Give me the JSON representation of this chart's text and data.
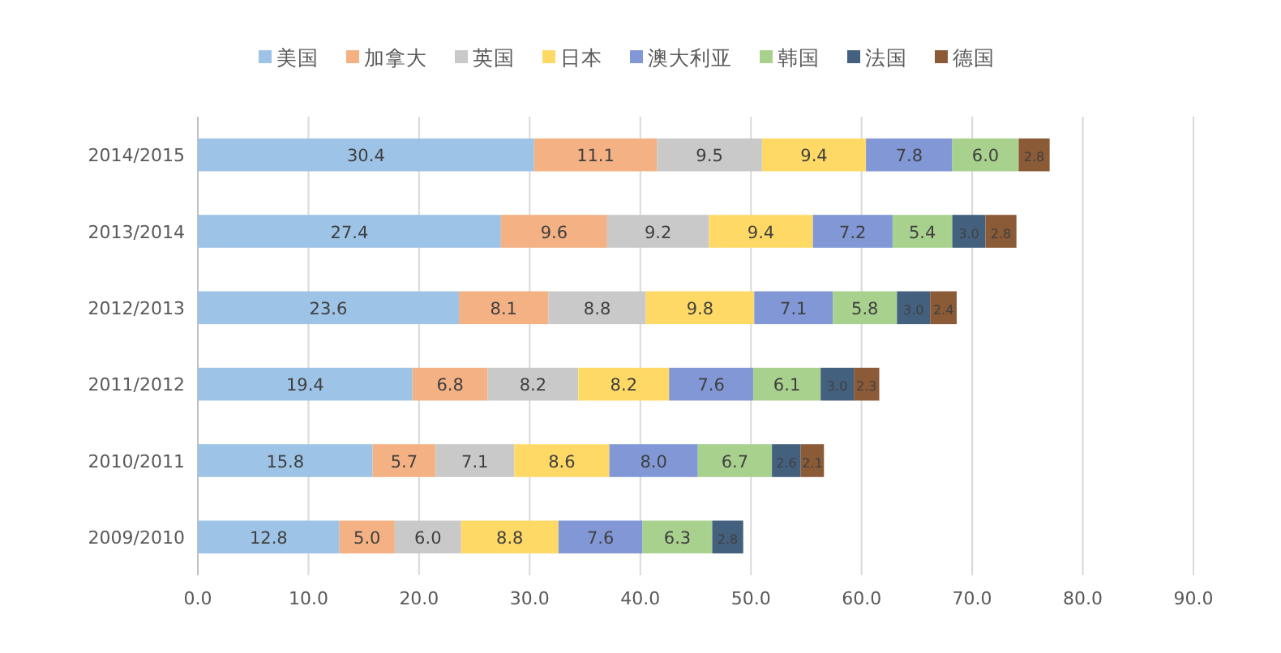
{
  "chart_data": {
    "type": "bar",
    "orientation": "horizontal",
    "stacked": true,
    "categories": [
      "2014/2015",
      "2013/2014",
      "2012/2013",
      "2011/2012",
      "2010/2011",
      "2009/2010"
    ],
    "series": [
      {
        "name": "美国",
        "color": "#9dc3e6",
        "values": [
          30.4,
          27.4,
          23.6,
          19.4,
          15.8,
          12.8
        ],
        "value_labels": [
          "30.4",
          "27.4",
          "23.6",
          "19.4",
          "15.8",
          "12.8"
        ]
      },
      {
        "name": "加拿大",
        "color": "#f4b183",
        "values": [
          11.1,
          9.6,
          8.1,
          6.8,
          5.7,
          5.0
        ],
        "value_labels": [
          "11.1",
          "9.6",
          "8.1",
          "6.8",
          "5.7",
          "5.0"
        ]
      },
      {
        "name": "英国",
        "color": "#c9c9c9",
        "values": [
          9.5,
          9.2,
          8.8,
          8.2,
          7.1,
          6.0
        ],
        "value_labels": [
          "9.5",
          "9.2",
          "8.8",
          "8.2",
          "7.1",
          "6.0"
        ]
      },
      {
        "name": "日本",
        "color": "#ffd966",
        "values": [
          9.4,
          9.4,
          9.8,
          8.2,
          8.6,
          8.8
        ],
        "value_labels": [
          "9.4",
          "9.4",
          "9.8",
          "8.2",
          "8.6",
          "8.8"
        ]
      },
      {
        "name": "澳大利亚",
        "color": "#8197d6",
        "values": [
          7.8,
          7.2,
          7.1,
          7.6,
          8.0,
          7.6
        ],
        "value_labels": [
          "7.8",
          "7.2",
          "7.1",
          "7.6",
          "8.0",
          "7.6"
        ]
      },
      {
        "name": "韩国",
        "color": "#a9d18e",
        "values": [
          6.0,
          5.4,
          5.8,
          6.1,
          6.7,
          6.3
        ],
        "value_labels": [
          "6.0",
          "5.4",
          "5.8",
          "6.1",
          "6.7",
          "6.3"
        ]
      },
      {
        "name": "法国",
        "color": "#44607f",
        "values": [
          null,
          3.0,
          3.0,
          3.0,
          2.6,
          2.8
        ],
        "value_labels": [
          null,
          "3.0",
          "3.0",
          "3.0",
          "2.6",
          "2.8"
        ]
      },
      {
        "name": "德国",
        "color": "#8b5a36",
        "values": [
          2.8,
          2.8,
          2.4,
          2.3,
          2.1,
          null
        ],
        "value_labels": [
          "2.8",
          "2.8",
          "2.4",
          "2.3",
          "2.1",
          null
        ]
      }
    ],
    "legend": "top",
    "grid": "x",
    "xlim": [
      0,
      90
    ],
    "xticks": [
      {
        "value": 0,
        "label": "0.0"
      },
      {
        "value": 10,
        "label": "10.0"
      },
      {
        "value": 20,
        "label": "20.0"
      },
      {
        "value": 30,
        "label": "30.0"
      },
      {
        "value": 40,
        "label": "40.0"
      },
      {
        "value": 50,
        "label": "50.0"
      },
      {
        "value": 60,
        "label": "60.0"
      },
      {
        "value": 70,
        "label": "70.0"
      },
      {
        "value": 80,
        "label": "80.0"
      },
      {
        "value": 90,
        "label": "90.0"
      }
    ]
  }
}
